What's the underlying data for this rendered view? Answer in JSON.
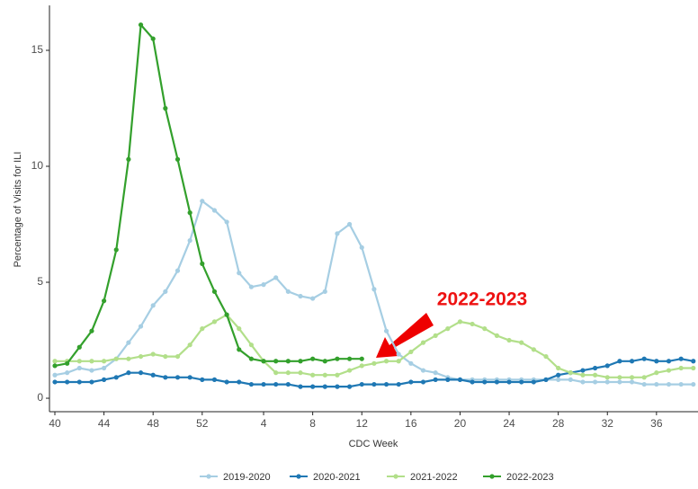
{
  "chart_data": {
    "type": "line",
    "x_label": "CDC Week",
    "y_label": "Percentage of Visits for ILI",
    "annotation": "2022-2023",
    "categories": [
      "40",
      null,
      null,
      null,
      "44",
      null,
      null,
      null,
      "48",
      null,
      null,
      null,
      "52",
      null,
      null,
      null,
      null,
      "4",
      null,
      null,
      null,
      "8",
      null,
      null,
      null,
      "12",
      null,
      null,
      null,
      "16",
      null,
      null,
      null,
      "20",
      null,
      null,
      null,
      "24",
      null,
      null,
      null,
      "28",
      null,
      null,
      null,
      "32",
      null,
      null,
      null,
      "36",
      null,
      null,
      null
    ],
    "ylim": [
      -0.58,
      16.86
    ],
    "yticks": [
      0,
      5,
      10,
      15
    ],
    "grid": false,
    "legend": "bottom",
    "series": [
      {
        "name": "2019-2020",
        "color": "#a6cee3",
        "values": [
          1.0,
          1.1,
          1.3,
          1.2,
          1.3,
          1.7,
          2.4,
          3.1,
          4.0,
          4.6,
          5.5,
          6.8,
          8.5,
          8.1,
          7.6,
          5.4,
          4.8,
          4.9,
          5.2,
          4.6,
          4.4,
          4.3,
          4.6,
          7.1,
          7.5,
          6.5,
          4.7,
          2.9,
          1.9,
          1.5,
          1.2,
          1.1,
          0.9,
          0.8,
          0.8,
          0.8,
          0.8,
          0.8,
          0.8,
          0.8,
          0.8,
          0.8,
          0.8,
          0.7,
          0.7,
          0.7,
          0.7,
          0.7,
          0.6,
          0.6,
          0.6,
          0.6,
          0.6
        ]
      },
      {
        "name": "2020-2021",
        "color": "#1f78b4",
        "values": [
          0.7,
          0.7,
          0.7,
          0.7,
          0.8,
          0.9,
          1.1,
          1.1,
          1.0,
          0.9,
          0.9,
          0.9,
          0.8,
          0.8,
          0.7,
          0.7,
          0.6,
          0.6,
          0.6,
          0.6,
          0.5,
          0.5,
          0.5,
          0.5,
          0.5,
          0.6,
          0.6,
          0.6,
          0.6,
          0.7,
          0.7,
          0.8,
          0.8,
          0.8,
          0.7,
          0.7,
          0.7,
          0.7,
          0.7,
          0.7,
          0.8,
          1.0,
          1.1,
          1.2,
          1.3,
          1.4,
          1.6,
          1.6,
          1.7,
          1.6,
          1.6,
          1.7,
          1.6
        ]
      },
      {
        "name": "2021-2022",
        "color": "#b2df8a",
        "values": [
          1.6,
          1.6,
          1.6,
          1.6,
          1.6,
          1.7,
          1.7,
          1.8,
          1.9,
          1.8,
          1.8,
          2.3,
          3.0,
          3.3,
          3.6,
          3.0,
          2.3,
          1.6,
          1.1,
          1.1,
          1.1,
          1.0,
          1.0,
          1.0,
          1.2,
          1.4,
          1.5,
          1.6,
          1.6,
          2.0,
          2.4,
          2.7,
          3.0,
          3.3,
          3.2,
          3.0,
          2.7,
          2.5,
          2.4,
          2.1,
          1.8,
          1.3,
          1.1,
          1.0,
          1.0,
          0.9,
          0.9,
          0.9,
          0.9,
          1.1,
          1.2,
          1.3,
          1.3
        ]
      },
      {
        "name": "2022-2023",
        "color": "#33a02c",
        "values": [
          1.4,
          1.5,
          2.2,
          2.9,
          4.2,
          6.4,
          10.3,
          16.1,
          15.5,
          12.5,
          10.3,
          8.0,
          5.8,
          4.6,
          3.6,
          2.1,
          1.7,
          1.6,
          1.6,
          1.6,
          1.6,
          1.7,
          1.6,
          1.7,
          1.7,
          1.7,
          null,
          null,
          null,
          null,
          null,
          null,
          null,
          null,
          null,
          null,
          null,
          null,
          null,
          null,
          null,
          null,
          null,
          null,
          null,
          null,
          null,
          null,
          null,
          null,
          null,
          null,
          null
        ]
      }
    ]
  }
}
